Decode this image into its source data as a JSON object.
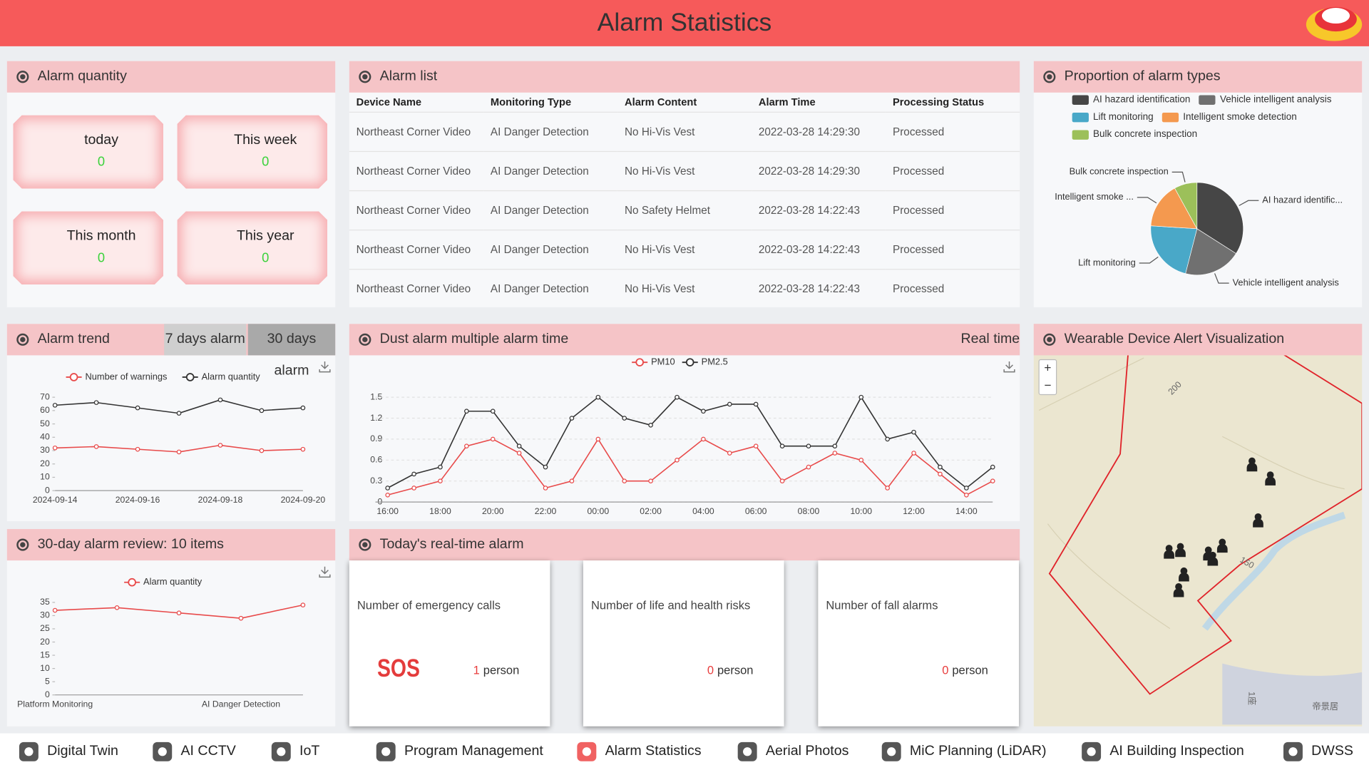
{
  "header": {
    "title": "Alarm Statistics"
  },
  "alarm_quantity": {
    "title": "Alarm quantity",
    "cards": [
      {
        "label": "today",
        "value": 0
      },
      {
        "label": "This week",
        "value": 0
      },
      {
        "label": "This month",
        "value": 0
      },
      {
        "label": "This year",
        "value": 0
      }
    ]
  },
  "alarm_list": {
    "title": "Alarm list",
    "columns": [
      "Device Name",
      "Monitoring Type",
      "Alarm Content",
      "Alarm Time",
      "Processing Status"
    ],
    "rows": [
      [
        "Northeast Corner Video",
        "AI Danger Detection",
        "No Hi-Vis Vest",
        "2022-03-28 14:29:30",
        "Processed"
      ],
      [
        "Northeast Corner Video",
        "AI Danger Detection",
        "No Hi-Vis Vest",
        "2022-03-28 14:29:30",
        "Processed"
      ],
      [
        "Northeast Corner Video",
        "AI Danger Detection",
        "No Safety Helmet",
        "2022-03-28 14:22:43",
        "Processed"
      ],
      [
        "Northeast Corner Video",
        "AI Danger Detection",
        "No Hi-Vis Vest",
        "2022-03-28 14:22:43",
        "Processed"
      ],
      [
        "Northeast Corner Video",
        "AI Danger Detection",
        "No Hi-Vis Vest",
        "2022-03-28 14:22:43",
        "Processed"
      ]
    ]
  },
  "chart_data": [
    {
      "type": "pie",
      "title": "Proportion of alarm types",
      "categories": [
        "AI hazard identification",
        "Vehicle intelligent analysis",
        "Lift monitoring",
        "Intelligent smoke detection",
        "Bulk concrete inspection"
      ],
      "slice_labels": [
        "AI hazard identific...",
        "Vehicle intelligent analysis",
        "Lift monitoring",
        "Intelligent smoke ...",
        "Bulk concrete inspection"
      ],
      "values": [
        34,
        20,
        22,
        16,
        8
      ],
      "colors": [
        "#464646",
        "#707070",
        "#49a8c8",
        "#f4994f",
        "#9cc05a"
      ]
    },
    {
      "type": "line",
      "title": "Alarm trend",
      "buttons": [
        "7 days alarm",
        "30 days alarm"
      ],
      "categories": [
        "2024-09-14",
        null,
        "2024-09-16",
        null,
        "2024-09-18",
        null,
        "2024-09-20"
      ],
      "series": [
        {
          "name": "Number of warnings",
          "color": "#e84a4a",
          "values": [
            32,
            33,
            31,
            29,
            34,
            30,
            31
          ]
        },
        {
          "name": "Alarm quantity",
          "color": "#333333",
          "values": [
            64,
            66,
            62,
            58,
            68,
            60,
            62
          ]
        }
      ],
      "ylim": [
        0,
        70
      ],
      "yticks": [
        0,
        10,
        20,
        30,
        40,
        50,
        60,
        70
      ],
      "grid": false
    },
    {
      "type": "line",
      "title": "Dust alarm multiple alarm time",
      "mode_label": "Real time",
      "categories": [
        "16:00",
        null,
        "18:00",
        null,
        "20:00",
        null,
        "22:00",
        null,
        "00:00",
        null,
        "02:00",
        null,
        "04:00",
        null,
        "06:00",
        null,
        "08:00",
        null,
        "10:00",
        null,
        "12:00",
        null,
        "14:00",
        null
      ],
      "series": [
        {
          "name": "PM10",
          "color": "#e84a4a",
          "values": [
            0.1,
            0.2,
            0.3,
            0.8,
            0.9,
            0.7,
            0.2,
            0.3,
            0.9,
            0.3,
            0.3,
            0.6,
            0.9,
            0.7,
            0.8,
            0.3,
            0.5,
            0.7,
            0.6,
            0.2,
            0.7,
            0.4,
            0.1,
            0.3
          ]
        },
        {
          "name": "PM2.5",
          "color": "#333333",
          "values": [
            0.2,
            0.4,
            0.5,
            1.3,
            1.3,
            0.8,
            0.5,
            1.2,
            1.5,
            1.2,
            1.1,
            1.5,
            1.3,
            1.4,
            1.4,
            0.8,
            0.8,
            0.8,
            1.5,
            0.9,
            1.0,
            0.5,
            0.2,
            0.5
          ]
        }
      ],
      "ylim": [
        0,
        1.5
      ],
      "yticks": [
        0,
        0.3,
        0.6,
        0.9,
        1.2,
        1.5
      ],
      "grid": true
    },
    {
      "type": "line",
      "title": "30-day alarm review: 10 items",
      "categories": [
        "Platform Monitoring",
        null,
        null,
        "AI Danger Detection",
        null
      ],
      "series": [
        {
          "name": "Alarm quantity",
          "color": "#e84a4a",
          "values": [
            32,
            33,
            31,
            29,
            34
          ]
        }
      ],
      "ylim": [
        0,
        35
      ],
      "yticks": [
        0,
        5,
        10,
        15,
        20,
        25,
        30,
        35
      ],
      "grid": false
    }
  ],
  "realtime": {
    "title": "Today's real-time alarm",
    "cards": [
      {
        "label": "Number of emergency calls",
        "icon_text": "SOS",
        "value": 1,
        "unit": "person"
      },
      {
        "label": "Number of life and health risks",
        "value": 0,
        "unit": "person"
      },
      {
        "label": "Number of fall alarms",
        "value": 0,
        "unit": "person"
      }
    ]
  },
  "map": {
    "title": "Wearable Device Alert Visualization",
    "zoom_in": "+",
    "zoom_out": "−",
    "labels": [
      "200",
      "150",
      "1座",
      "帝景居"
    ]
  },
  "nav": [
    "Digital Twin",
    "AI CCTV",
    "IoT",
    "Program Management",
    "Alarm Statistics",
    "Aerial Photos",
    "MiC Planning (LiDAR)",
    "AI Building Inspection",
    "DWSS"
  ]
}
